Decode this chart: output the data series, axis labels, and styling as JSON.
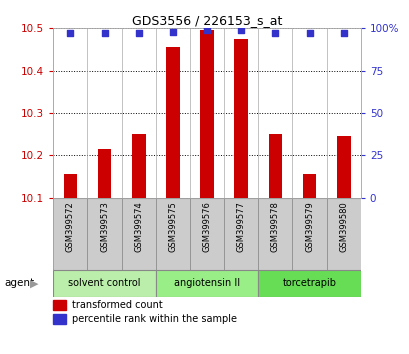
{
  "title": "GDS3556 / 226153_s_at",
  "samples": [
    "GSM399572",
    "GSM399573",
    "GSM399574",
    "GSM399575",
    "GSM399576",
    "GSM399577",
    "GSM399578",
    "GSM399579",
    "GSM399580"
  ],
  "bar_values": [
    10.155,
    10.215,
    10.25,
    10.455,
    10.495,
    10.475,
    10.25,
    10.155,
    10.245
  ],
  "percentile_values": [
    97,
    97,
    97,
    98,
    99,
    99,
    97,
    97,
    97
  ],
  "ylim_left": [
    10.1,
    10.5
  ],
  "ylim_right": [
    0,
    100
  ],
  "yticks_left": [
    10.1,
    10.2,
    10.3,
    10.4,
    10.5
  ],
  "yticks_right": [
    0,
    25,
    50,
    75,
    100
  ],
  "bar_color": "#cc0000",
  "dot_color": "#3333cc",
  "bar_bottom": 10.1,
  "groups": [
    {
      "label": "solvent control",
      "start": 0,
      "end": 3,
      "color": "#bbeeaa"
    },
    {
      "label": "angiotensin II",
      "start": 3,
      "end": 6,
      "color": "#99ee88"
    },
    {
      "label": "torcetrapib",
      "start": 6,
      "end": 9,
      "color": "#66dd55"
    }
  ],
  "agent_label": "agent",
  "legend_items": [
    {
      "label": "transformed count",
      "color": "#cc0000"
    },
    {
      "label": "percentile rank within the sample",
      "color": "#3333cc"
    }
  ],
  "grid_color": "#000000",
  "tick_color_left": "#cc0000",
  "tick_color_right": "#3333cc",
  "bg_color": "#ffffff",
  "plot_bg_color": "#ffffff",
  "sample_bg_color": "#cccccc",
  "bar_width": 0.4
}
